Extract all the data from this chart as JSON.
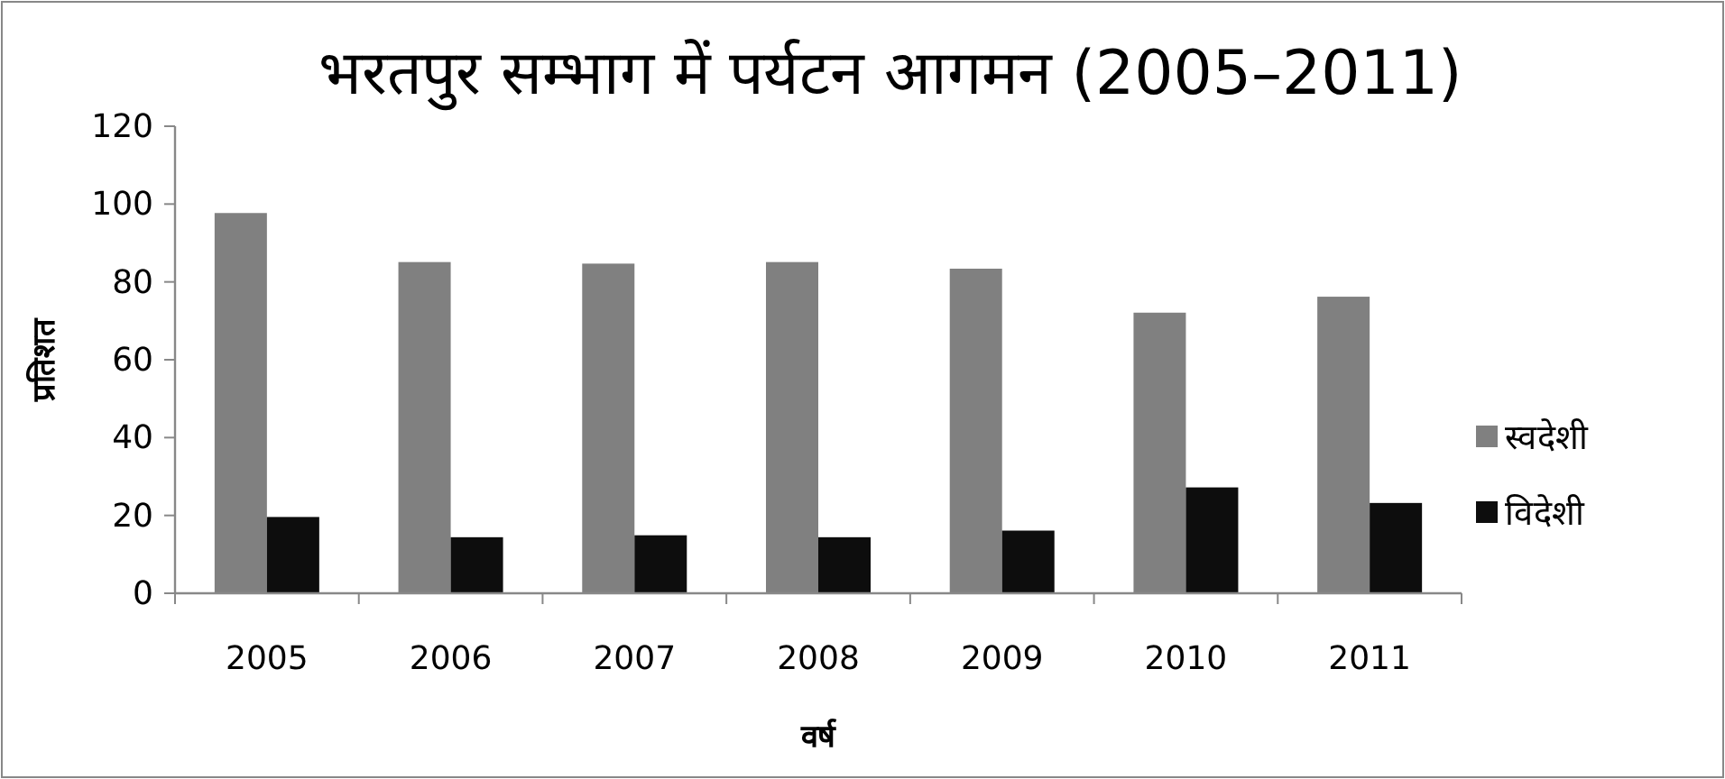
{
  "chart_data": {
    "type": "bar",
    "title": "भरतपुर सम्भाग में पर्यटन आगमन (2005–2011)",
    "xlabel": "वर्ष",
    "ylabel": "प्रतिशत",
    "categories": [
      "2005",
      "2006",
      "2007",
      "2008",
      "2009",
      "2010",
      "2011"
    ],
    "series": [
      {
        "name": "स्वदेशी",
        "color": "#808080",
        "values": [
          97.7,
          85.1,
          84.7,
          85.1,
          83.4,
          72.1,
          76.2
        ]
      },
      {
        "name": "विदेशी",
        "color": "#0d0d0d",
        "values": [
          19.6,
          14.4,
          14.9,
          14.4,
          16.1,
          27.2,
          23.2
        ]
      }
    ],
    "ylim": [
      0,
      120
    ],
    "yticks": [
      0,
      20,
      40,
      60,
      80,
      100,
      120
    ],
    "grid": false,
    "legend": "right"
  }
}
